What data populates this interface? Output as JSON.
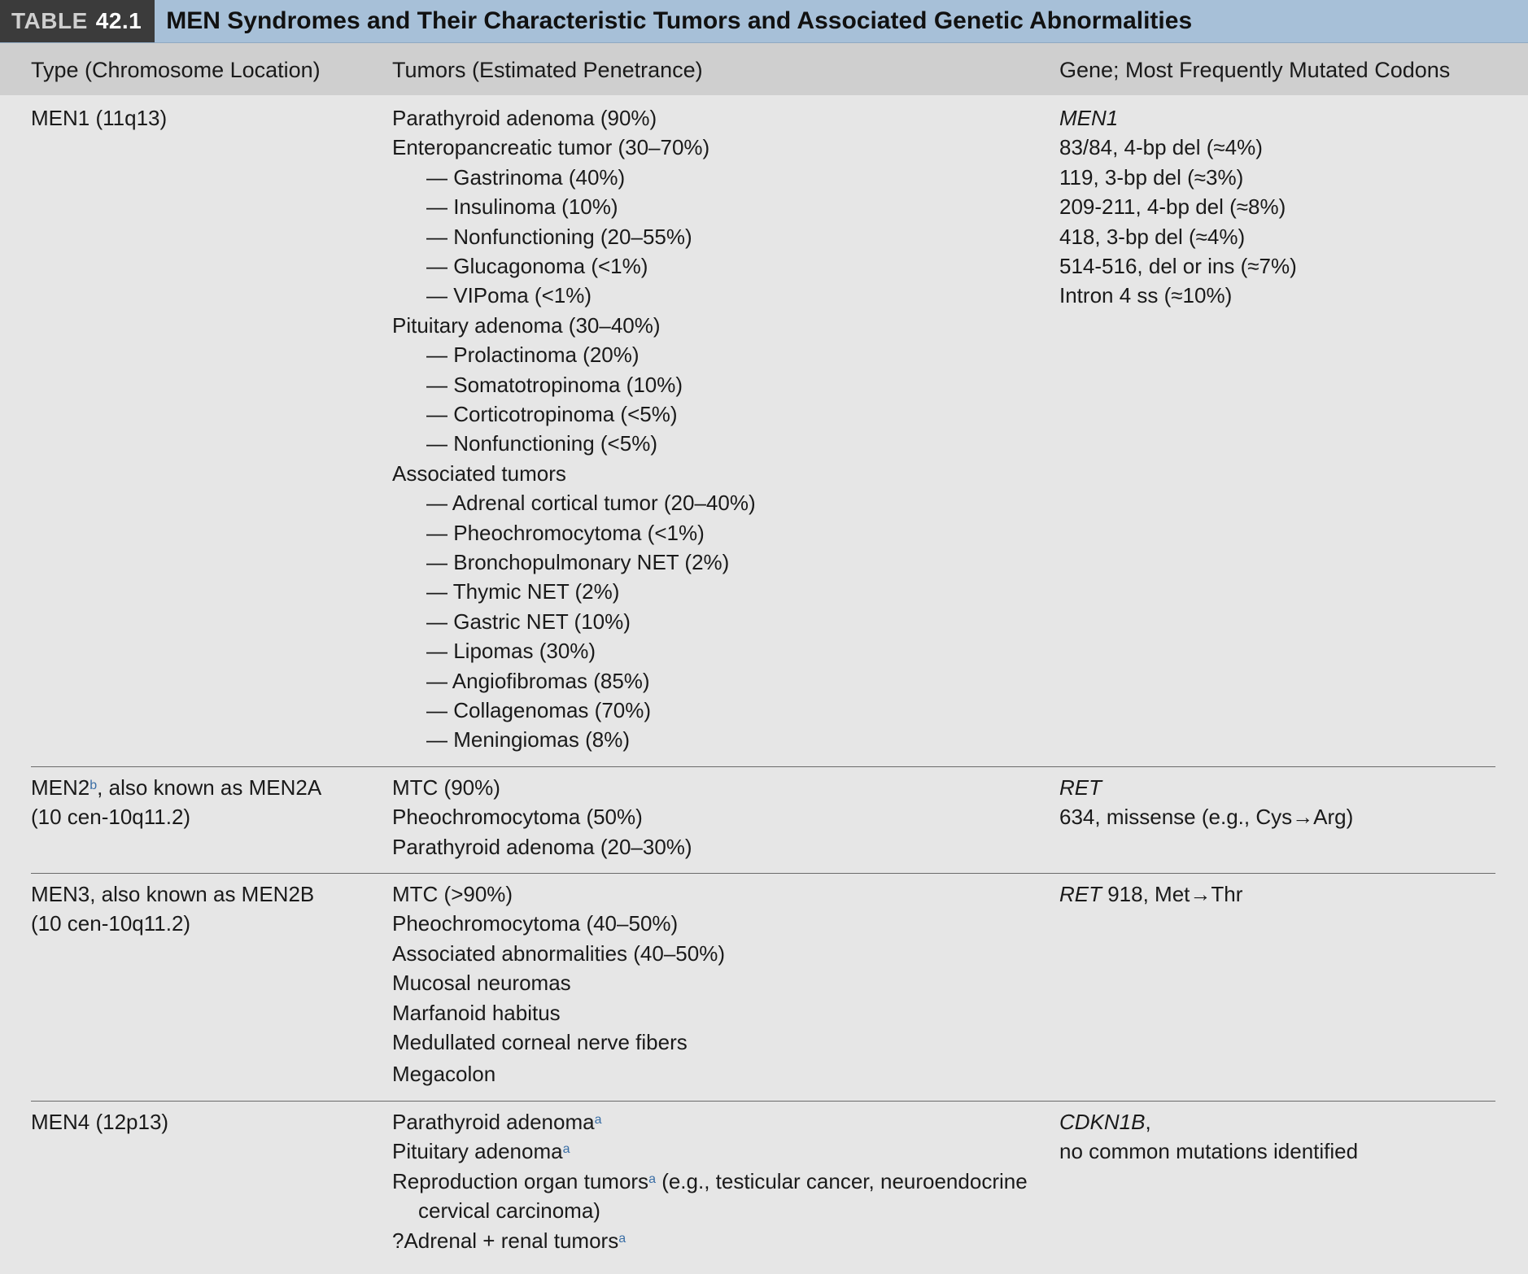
{
  "title_bar": {
    "label_word": "TABLE",
    "label_number": "42.1",
    "title": "MEN Syndromes and Their Characteristic Tumors and Associated Genetic Abnormalities"
  },
  "columns": [
    "Type (Chromosome Location)",
    "Tumors (Estimated Penetrance)",
    "Gene; Most Frequently Mutated Codons"
  ],
  "men1": {
    "type": "MEN1 (11q13)",
    "tumors": [
      "Parathyroid adenoma (90%)",
      "Enteropancreatic tumor (30–70%)",
      "— Gastrinoma (40%)",
      "— Insulinoma (10%)",
      "— Nonfunctioning (20–55%)",
      "— Glucagonoma (<1%)",
      "— VIPoma (<1%)",
      "Pituitary adenoma (30–40%)",
      "— Prolactinoma (20%)",
      "— Somatotropinoma (10%)",
      "— Corticotropinoma (<5%)",
      "— Nonfunctioning (<5%)",
      "Associated tumors",
      "— Adrenal cortical tumor (20–40%)",
      "— Pheochromocytoma (<1%)",
      "— Bronchopulmonary NET (2%)",
      "— Thymic NET (2%)",
      "— Gastric NET (10%)",
      "— Lipomas (30%)",
      "— Angiofibromas (85%)",
      "— Collagenomas (70%)",
      "— Meningiomas (8%)"
    ],
    "gene": "MEN1",
    "codons": [
      "83/84, 4-bp del (≈4%)",
      "119, 3-bp del (≈3%)",
      "209-211, 4-bp del (≈8%)",
      "418, 3-bp del (≈4%)",
      "514-516, del or ins (≈7%)",
      "Intron 4 ss (≈10%)"
    ]
  },
  "men2": {
    "type_name": "MEN2",
    "type_sup": "b",
    "type_rest": ", also known as MEN2A",
    "location": "(10 cen-10q11.2)",
    "tumors": [
      "MTC (90%)",
      "Pheochromocytoma (50%)",
      "Parathyroid adenoma (20–30%)"
    ],
    "gene": "RET",
    "codons": [
      "634, missense (e.g., Cys→Arg)"
    ]
  },
  "men3": {
    "type": "MEN3, also known as MEN2B",
    "location": "(10 cen-10q11.2)",
    "tumors": [
      "MTC (>90%)",
      "Pheochromocytoma (40–50%)",
      "Associated abnormalities (40–50%)",
      "Mucosal neuromas",
      "Marfanoid habitus",
      "Medullated corneal nerve fibers",
      "Megacolon"
    ],
    "gene": "RET",
    "codon": " 918, Met→Thr"
  },
  "men4": {
    "type": "MEN4 (12p13)",
    "tumor1": "Parathyroid adenoma",
    "tumor2": "Pituitary adenoma",
    "tumor3": "Reproduction organ tumors",
    "tumor3_rest": " (e.g., testicular cancer, neuroendocrine",
    "tumor3_cont": "cervical carcinoma)",
    "tumor4": "?Adrenal + renal tumors",
    "footnote_mark": "a",
    "gene": "CDKN1B",
    "gene_suffix": ",",
    "codons": "no common mutations identified"
  }
}
